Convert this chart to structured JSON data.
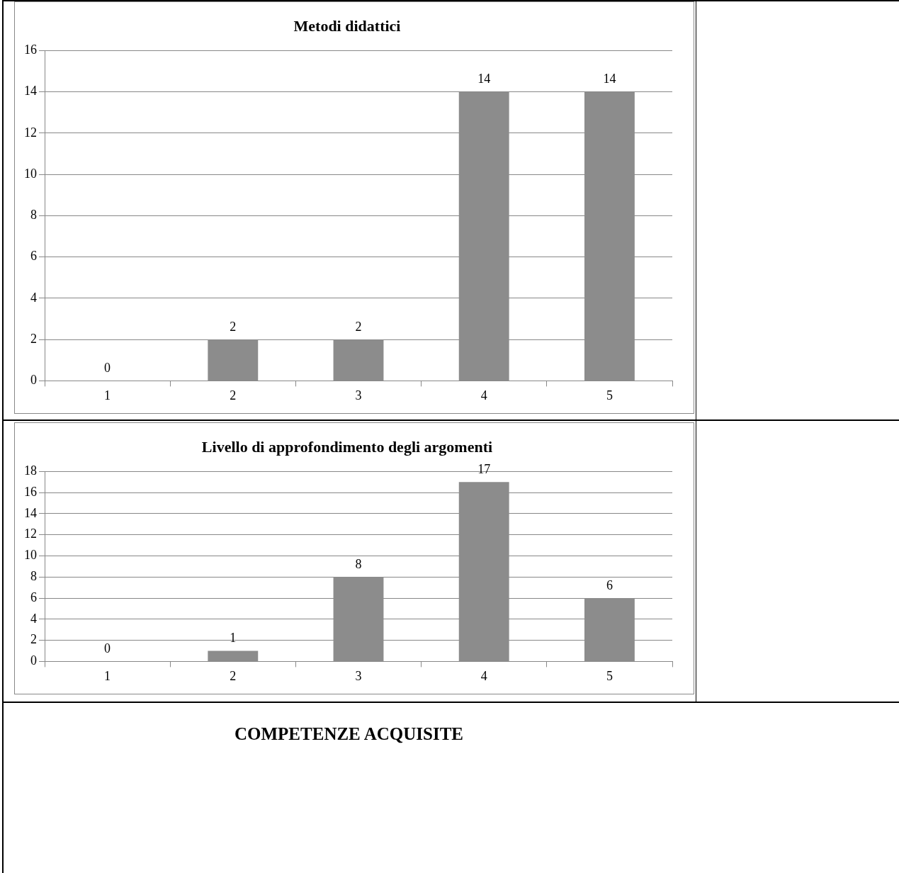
{
  "chart_data": [
    {
      "type": "bar",
      "title": "Metodi didattici",
      "categories": [
        "1",
        "2",
        "3",
        "4",
        "5"
      ],
      "values": [
        0,
        2,
        2,
        14,
        14
      ],
      "color": "#8c8c8c",
      "ylim": [
        0,
        16
      ],
      "yticks": [
        0,
        2,
        4,
        6,
        8,
        10,
        12,
        14,
        16
      ],
      "grid": "y",
      "data_labels": true
    },
    {
      "type": "bar",
      "title": "Livello di approfondimento degli argomenti",
      "categories": [
        "1",
        "2",
        "3",
        "4",
        "5"
      ],
      "values": [
        0,
        1,
        8,
        17,
        6
      ],
      "color": "#8c8c8c",
      "ylim": [
        0,
        18
      ],
      "yticks": [
        0,
        2,
        4,
        6,
        8,
        10,
        12,
        14,
        16,
        18
      ],
      "grid": "y",
      "data_labels": true
    },
    {
      "type": "other",
      "title": "COMPETENZE ACQUISITE"
    }
  ]
}
